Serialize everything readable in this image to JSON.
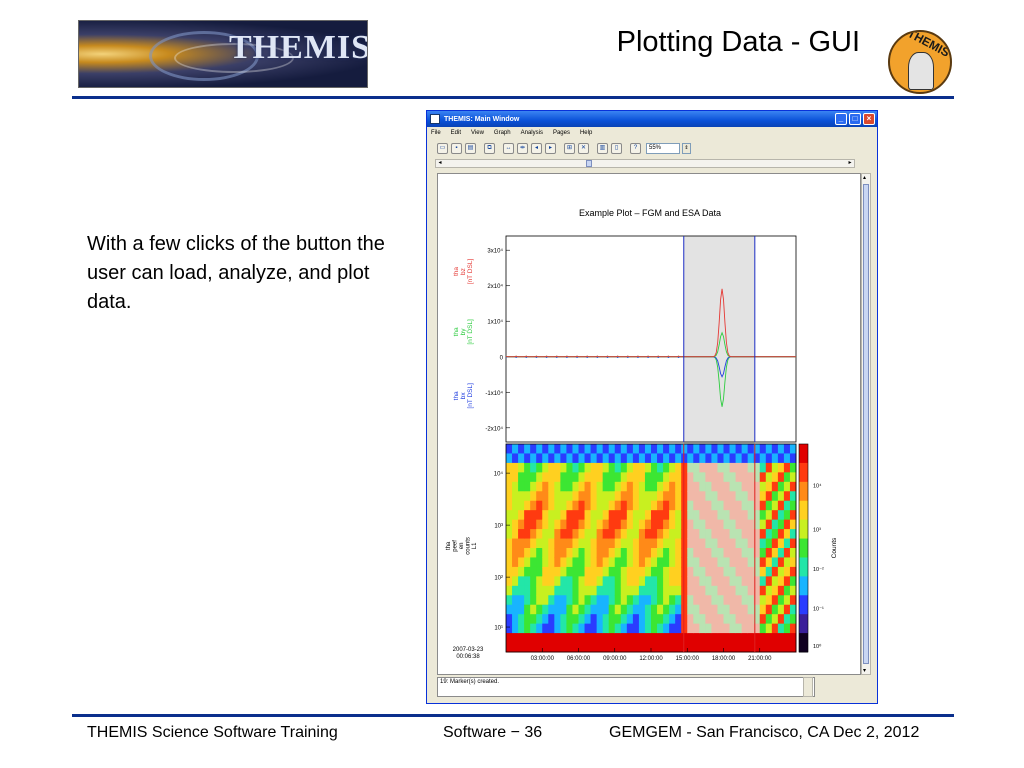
{
  "slide": {
    "logo_text": "THEMIS",
    "title": "Plotting Data - GUI",
    "seal_text": "THEMIS",
    "body": "With a few clicks of the button the user can load, analyze, and plot data.",
    "footer_left": "THEMIS Science Software Training",
    "footer_mid": "Software − 36",
    "footer_right": "GEMGEM - San Francisco, CA  Dec 2, 2012"
  },
  "window": {
    "title": "THEMIS: Main Window",
    "menu": [
      "File",
      "Edit",
      "View",
      "Graph",
      "Analysis",
      "Pages",
      "Help"
    ],
    "zoom_value": "55%",
    "status_message": "19: Marker(s) created."
  },
  "plot": {
    "title": "Example Plot – FGM and ESA Data",
    "panel1_ticks": [
      "3x10⁴",
      "2x10⁴",
      "1x10⁴",
      "0",
      "-1x10⁴",
      "-2x10⁴"
    ],
    "panel1_labels": [
      {
        "lines": [
          "tha",
          "bz",
          "[nT DSL]"
        ],
        "color": "#e53935"
      },
      {
        "lines": [
          "tha",
          "by",
          "[nT DSL]"
        ],
        "color": "#2ecc40"
      },
      {
        "lines": [
          "tha",
          "bx",
          "[nT DSL]"
        ],
        "color": "#2340e0"
      }
    ],
    "panel2_ticks": [
      "10⁴",
      "10³",
      "10²",
      "10¹"
    ],
    "panel2_label": [
      "tha",
      "peef",
      "en",
      "counts",
      "L1"
    ],
    "colorbar_ticks": [
      "10⁴",
      "10³",
      "10⁻²",
      "10⁻¹",
      "10⁰"
    ],
    "colorbar_label": "Counts",
    "x_start_label": [
      "2007-03-23",
      "00:06:38"
    ],
    "x_ticks": [
      "03:00:00",
      "06:00:00",
      "09:00:00",
      "12:00:00",
      "15:00:00",
      "18:00:00",
      "21:00:00"
    ]
  },
  "colors": {
    "rule": "#0a2f8c",
    "bz": "#e53935",
    "by": "#2ecc40",
    "bx": "#2340e0",
    "marker": "#1a2cc4",
    "marker_red": "#e02020",
    "shade": "#e3e3e3"
  }
}
